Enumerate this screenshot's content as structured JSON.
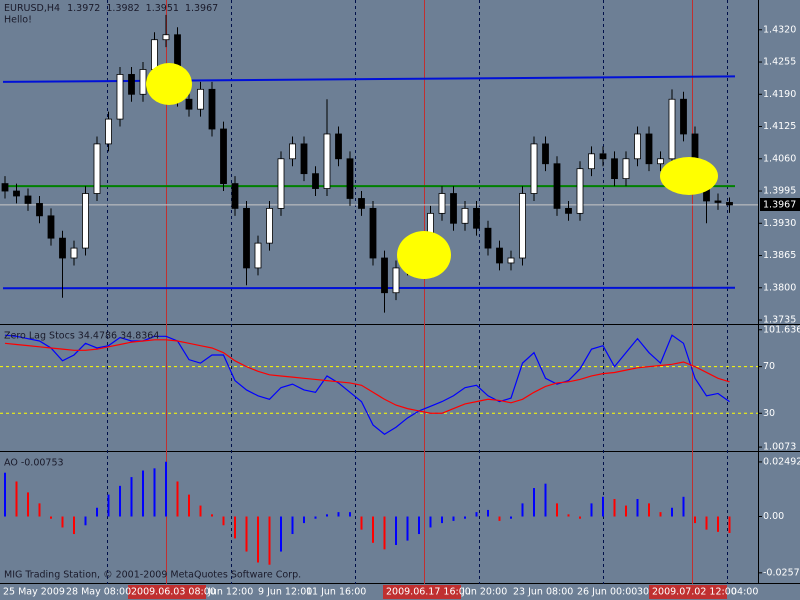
{
  "chart_data": [
    {
      "type": "candlestick",
      "title": "EURUSD,H4",
      "subtitle": "Hello!",
      "open": [
        1.401,
        1.3995,
        1.3985,
        1.397,
        1.3945,
        1.39,
        1.386,
        1.388,
        1.399,
        1.409,
        1.414,
        1.423,
        1.419,
        1.424,
        1.43,
        1.431,
        1.418,
        1.416,
        1.42,
        1.412,
        1.401,
        1.396,
        1.384,
        1.389,
        1.396,
        1.406,
        1.409,
        1.403,
        1.4,
        1.411,
        1.406,
        1.398,
        1.396,
        1.386,
        1.379,
        1.384,
        1.385,
        1.389,
        1.395,
        1.399,
        1.393,
        1.396,
        1.392,
        1.388,
        1.385,
        1.386,
        1.399,
        1.409,
        1.405,
        1.396,
        1.395,
        1.404,
        1.407,
        1.406,
        1.402,
        1.406,
        1.411,
        1.405,
        1.406,
        1.418,
        1.411,
        1.401,
        1.3975,
        1.3972
      ],
      "high": [
        1.4025,
        1.401,
        1.4,
        1.3985,
        1.396,
        1.3915,
        1.3895,
        1.4005,
        1.4105,
        1.4155,
        1.4245,
        1.4245,
        1.4255,
        1.4315,
        1.435,
        1.4325,
        1.4195,
        1.4215,
        1.4215,
        1.4135,
        1.4025,
        1.3975,
        1.3905,
        1.3975,
        1.4075,
        1.4105,
        1.4105,
        1.4045,
        1.418,
        1.4125,
        1.4075,
        1.3995,
        1.3975,
        1.3875,
        1.3855,
        1.3865,
        1.3905,
        1.3965,
        1.4005,
        1.4005,
        1.3975,
        1.3975,
        1.3935,
        1.3895,
        1.3875,
        1.4005,
        1.4105,
        1.4105,
        1.4065,
        1.3975,
        1.4055,
        1.4085,
        1.4085,
        1.4075,
        1.4075,
        1.4125,
        1.4125,
        1.4075,
        1.42,
        1.4195,
        1.4125,
        1.4025,
        1.399,
        1.3982
      ],
      "low": [
        1.398,
        1.397,
        1.3955,
        1.393,
        1.3885,
        1.378,
        1.3845,
        1.3865,
        1.3975,
        1.4075,
        1.4125,
        1.4175,
        1.4175,
        1.4225,
        1.4285,
        1.4165,
        1.4145,
        1.4145,
        1.4105,
        1.3995,
        1.3945,
        1.3805,
        1.3825,
        1.3875,
        1.3945,
        1.4045,
        1.4015,
        1.3985,
        1.3985,
        1.4045,
        1.3965,
        1.3945,
        1.3845,
        1.375,
        1.3775,
        1.3825,
        1.3835,
        1.3875,
        1.3935,
        1.3915,
        1.3915,
        1.3905,
        1.3865,
        1.3835,
        1.3835,
        1.3845,
        1.3975,
        1.4035,
        1.3945,
        1.3935,
        1.3935,
        1.4025,
        1.4045,
        1.4005,
        1.4005,
        1.4045,
        1.4035,
        1.4035,
        1.4045,
        1.4095,
        1.3995,
        1.393,
        1.3957,
        1.3951
      ],
      "close": [
        1.3995,
        1.3985,
        1.397,
        1.3945,
        1.39,
        1.386,
        1.388,
        1.399,
        1.409,
        1.414,
        1.423,
        1.419,
        1.424,
        1.43,
        1.431,
        1.418,
        1.416,
        1.42,
        1.412,
        1.401,
        1.396,
        1.384,
        1.389,
        1.396,
        1.406,
        1.409,
        1.403,
        1.4,
        1.411,
        1.406,
        1.398,
        1.396,
        1.386,
        1.379,
        1.384,
        1.385,
        1.389,
        1.395,
        1.399,
        1.393,
        1.396,
        1.392,
        1.388,
        1.385,
        1.386,
        1.399,
        1.409,
        1.405,
        1.396,
        1.395,
        1.404,
        1.407,
        1.406,
        1.402,
        1.406,
        1.411,
        1.405,
        1.406,
        1.418,
        1.411,
        1.401,
        1.3975,
        1.3972,
        1.3967
      ],
      "ylim": [
        1.3729,
        1.4376
      ],
      "yticks": [
        {
          "value": 1.432,
          "label": "1.4320"
        },
        1.4255,
        {
          "value": 1.419,
          "label": "1.4190"
        },
        1.4125,
        {
          "value": 1.406,
          "label": "1.4060"
        },
        1.3995,
        {
          "value": 1.393,
          "label": "1.3930"
        },
        1.3865,
        {
          "value": 1.38,
          "label": "1.3800"
        },
        1.3735
      ],
      "trendlines": [
        {
          "from": 1.4215,
          "to": 1.4226,
          "color": "#0010d8"
        },
        {
          "from": 1.3799,
          "to": 1.38,
          "color": "#0010d8"
        },
        {
          "from": 1.4005,
          "to": 1.4005,
          "color": "#008000"
        }
      ],
      "bull_color": "#ffffff",
      "bear_color": "#000000"
    },
    {
      "type": "line",
      "title": "Zero Lag Stocs 34.4786 34.8364",
      "series": [
        {
          "color": "#0000ff",
          "values": [
            97,
            96,
            94,
            92,
            86,
            75,
            80,
            90,
            86,
            88,
            95,
            92,
            92,
            96,
            96,
            92,
            76,
            73,
            80,
            80,
            58,
            50,
            45,
            42,
            52,
            55,
            50,
            48,
            62,
            56,
            48,
            40,
            20,
            12,
            18,
            26,
            32,
            36,
            40,
            45,
            52,
            54,
            45,
            40,
            43,
            73,
            82,
            60,
            55,
            58,
            68,
            85,
            88,
            70,
            82,
            94,
            82,
            73,
            97,
            90,
            60,
            45,
            47,
            40
          ]
        },
        {
          "color": "#ff0000",
          "values": [
            90,
            89,
            88,
            87,
            86,
            85,
            84,
            84,
            85,
            87,
            89,
            91,
            92,
            93,
            93,
            92,
            90,
            88,
            86,
            82,
            75,
            70,
            66,
            63,
            62,
            61,
            60,
            59,
            58,
            57,
            56,
            54,
            48,
            42,
            37,
            34,
            32,
            30,
            30,
            34,
            38,
            40,
            42,
            41,
            39,
            42,
            48,
            53,
            56,
            57,
            59,
            62,
            64,
            65,
            67,
            69,
            70,
            71,
            72,
            74,
            70,
            65,
            60,
            57
          ]
        }
      ],
      "levels": [
        70,
        30
      ],
      "level_color": "#ffff00",
      "ylim": [
        -1.5,
        104
      ],
      "yticks": [
        101.6361,
        70,
        30,
        1.0073
      ]
    },
    {
      "type": "bar",
      "title": "AO -0.00753",
      "values": [
        0.02,
        0.016,
        0.011,
        0.006,
        -0.001,
        -0.005,
        -0.008,
        -0.004,
        0.004,
        0.01,
        0.014,
        0.018,
        0.021,
        0.022,
        0.025,
        0.016,
        0.01,
        0.005,
        0.001,
        -0.004,
        -0.01,
        -0.016,
        -0.021,
        -0.022,
        -0.016,
        -0.008,
        -0.003,
        -0.001,
        0.001,
        0.002,
        0.002,
        -0.006,
        -0.012,
        -0.015,
        -0.013,
        -0.011,
        -0.008,
        -0.005,
        -0.003,
        -0.002,
        -0.001,
        0.002,
        0.003,
        -0.002,
        -0.001,
        0.006,
        0.013,
        0.015,
        0.006,
        0.001,
        -0.001,
        0.006,
        0.009,
        0.008,
        0.005,
        0.008,
        0.006,
        0.002,
        0.004,
        0.009,
        -0.003,
        -0.006,
        -0.007,
        -0.0075
      ],
      "up_color": "#0000ff",
      "down_color": "#ff0000",
      "ylim": [
        -0.0299,
        0.029
      ],
      "yticks": [
        0.02492,
        {
          "value": 0,
          "label": "0.00"
        },
        -0.02572
      ]
    }
  ],
  "time_axis": [
    "25 May 2009",
    "28 May 08:00",
    "2009.06.03 08:00",
    "Jun 12:00",
    "9 Jun 12:00",
    "11 Jun 16:00",
    "2009.06.17 16:00",
    "Jun 20:00",
    "23 Jun 08:00",
    "26 Jun 00:00",
    "30",
    "2009.07.02 12:00",
    "04:00"
  ],
  "footer": "MIG Trading Station, © 2001-2009 MetaQuotes Software Corp."
}
